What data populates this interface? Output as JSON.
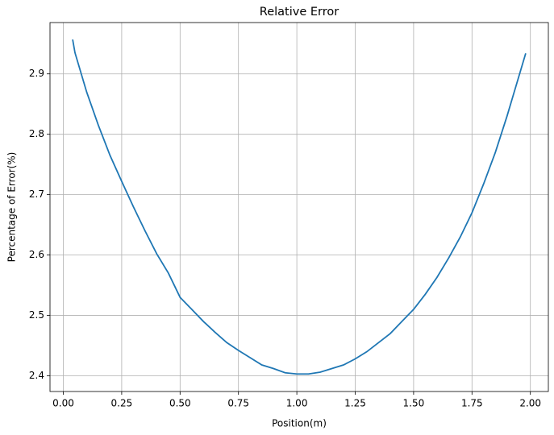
{
  "chart_data": {
    "type": "line",
    "title": "Relative Error",
    "x_label": "Position(m)",
    "y_label": "Percentage of Error(%)",
    "x": [
      0.04,
      0.05,
      0.1,
      0.15,
      0.2,
      0.25,
      0.3,
      0.35,
      0.4,
      0.45,
      0.5,
      0.55,
      0.6,
      0.65,
      0.7,
      0.75,
      0.8,
      0.85,
      0.9,
      0.95,
      1.0,
      1.05,
      1.1,
      1.15,
      1.2,
      1.25,
      1.3,
      1.35,
      1.4,
      1.45,
      1.5,
      1.55,
      1.6,
      1.65,
      1.7,
      1.75,
      1.8,
      1.85,
      1.9,
      1.95,
      1.98
    ],
    "series": [
      {
        "name": "Relative Error",
        "color": "#1f77b4",
        "values": [
          2.957,
          2.935,
          2.87,
          2.815,
          2.765,
          2.722,
          2.68,
          2.64,
          2.602,
          2.57,
          2.53,
          2.51,
          2.49,
          2.472,
          2.455,
          2.442,
          2.43,
          2.418,
          2.412,
          2.405,
          2.403,
          2.403,
          2.406,
          2.412,
          2.418,
          2.428,
          2.44,
          2.455,
          2.47,
          2.49,
          2.51,
          2.535,
          2.563,
          2.595,
          2.63,
          2.67,
          2.718,
          2.77,
          2.83,
          2.895,
          2.934
        ]
      }
    ],
    "xlim": [
      -0.057,
      2.077
    ],
    "ylim": [
      2.374,
      2.985
    ],
    "xticks": [
      {
        "value": 0,
        "label": "0.00"
      },
      {
        "value": 0.25,
        "label": "0.25"
      },
      {
        "value": 0.5,
        "label": "0.50"
      },
      {
        "value": 0.75,
        "label": "0.75"
      },
      {
        "value": 1,
        "label": "1.00"
      },
      {
        "value": 1.25,
        "label": "1.25"
      },
      {
        "value": 1.5,
        "label": "1.50"
      },
      {
        "value": 1.75,
        "label": "1.75"
      },
      {
        "value": 2,
        "label": "2.00"
      }
    ],
    "yticks": [
      2.4,
      2.5,
      2.6,
      2.7,
      2.8,
      2.9
    ],
    "grid": true
  }
}
